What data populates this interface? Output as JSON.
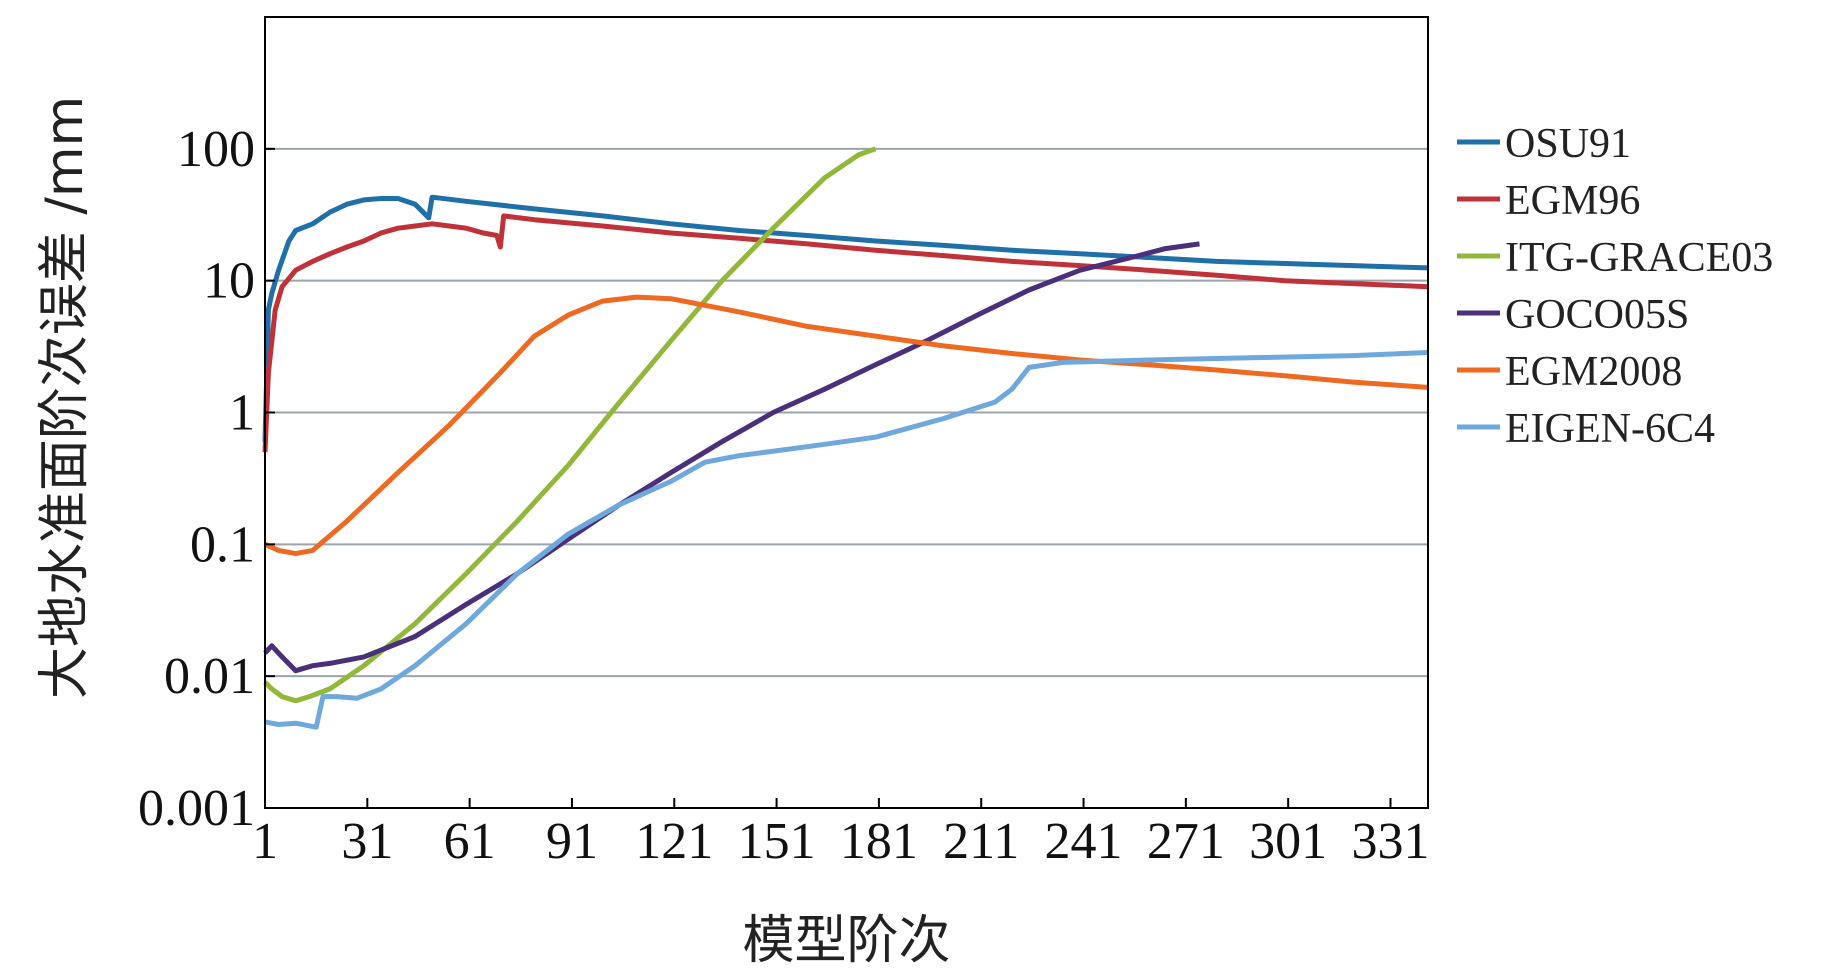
{
  "chart_data": {
    "type": "line",
    "title": "",
    "xlabel": "模型阶次",
    "ylabel": "大地水准面阶次误差 /mm",
    "x_scale": "linear",
    "y_scale": "log",
    "xlim": [
      1,
      342
    ],
    "ylim": [
      0.001,
      1000
    ],
    "x_ticks": [
      1,
      31,
      61,
      91,
      121,
      151,
      181,
      211,
      241,
      271,
      301,
      331
    ],
    "x_tick_labels": [
      "1",
      "31",
      "61",
      "91",
      "121",
      "151",
      "181",
      "211",
      "241",
      "271",
      "301",
      "331"
    ],
    "y_ticks": [
      0.001,
      0.01,
      0.1,
      1,
      10,
      100
    ],
    "y_tick_labels": [
      "0.001",
      "0.01",
      "0.1",
      "1",
      "10",
      "100"
    ],
    "grid": "horizontal",
    "legend_position": "right",
    "series": [
      {
        "name": "OSU91",
        "color": "#1f6fa8",
        "points": [
          [
            1,
            0.6
          ],
          [
            2,
            6
          ],
          [
            3,
            8
          ],
          [
            5,
            12
          ],
          [
            8,
            20
          ],
          [
            10,
            24
          ],
          [
            15,
            27
          ],
          [
            20,
            33
          ],
          [
            25,
            38
          ],
          [
            30,
            41
          ],
          [
            35,
            42
          ],
          [
            40,
            42
          ],
          [
            45,
            38
          ],
          [
            49,
            30
          ],
          [
            50,
            43
          ],
          [
            60,
            40
          ],
          [
            80,
            35
          ],
          [
            100,
            31
          ],
          [
            120,
            27
          ],
          [
            140,
            24
          ],
          [
            160,
            22
          ],
          [
            180,
            20
          ],
          [
            200,
            18.5
          ],
          [
            220,
            17
          ],
          [
            240,
            16
          ],
          [
            260,
            15
          ],
          [
            280,
            14
          ],
          [
            300,
            13.5
          ],
          [
            320,
            13
          ],
          [
            342,
            12.5
          ]
        ]
      },
      {
        "name": "EGM96",
        "color": "#c0323a",
        "points": [
          [
            1,
            0.5
          ],
          [
            2,
            2
          ],
          [
            4,
            6
          ],
          [
            6,
            9
          ],
          [
            10,
            12
          ],
          [
            15,
            14
          ],
          [
            20,
            16
          ],
          [
            25,
            18
          ],
          [
            30,
            20
          ],
          [
            35,
            23
          ],
          [
            40,
            25
          ],
          [
            45,
            26
          ],
          [
            50,
            27
          ],
          [
            55,
            26
          ],
          [
            60,
            25
          ],
          [
            65,
            23
          ],
          [
            69,
            22
          ],
          [
            70,
            18
          ],
          [
            71,
            31
          ],
          [
            80,
            29
          ],
          [
            100,
            26
          ],
          [
            120,
            23
          ],
          [
            140,
            21
          ],
          [
            160,
            19
          ],
          [
            180,
            17
          ],
          [
            200,
            15.5
          ],
          [
            220,
            14
          ],
          [
            240,
            13
          ],
          [
            260,
            12
          ],
          [
            280,
            11
          ],
          [
            300,
            10
          ],
          [
            320,
            9.5
          ],
          [
            342,
            9
          ]
        ]
      },
      {
        "name": "ITG-GRACE03",
        "color": "#92b83a",
        "points": [
          [
            1,
            0.009
          ],
          [
            3,
            0.008
          ],
          [
            6,
            0.007
          ],
          [
            10,
            0.0065
          ],
          [
            14,
            0.007
          ],
          [
            20,
            0.008
          ],
          [
            30,
            0.012
          ],
          [
            45,
            0.025
          ],
          [
            60,
            0.06
          ],
          [
            75,
            0.15
          ],
          [
            90,
            0.4
          ],
          [
            105,
            1.2
          ],
          [
            120,
            3.5
          ],
          [
            135,
            10
          ],
          [
            150,
            25
          ],
          [
            165,
            60
          ],
          [
            175,
            90
          ],
          [
            180,
            100
          ]
        ]
      },
      {
        "name": "GOCO05S",
        "color": "#4a2f7a",
        "points": [
          [
            1,
            0.015
          ],
          [
            3,
            0.017
          ],
          [
            6,
            0.014
          ],
          [
            10,
            0.011
          ],
          [
            15,
            0.012
          ],
          [
            20,
            0.0125
          ],
          [
            30,
            0.014
          ],
          [
            45,
            0.02
          ],
          [
            60,
            0.035
          ],
          [
            75,
            0.06
          ],
          [
            90,
            0.11
          ],
          [
            105,
            0.2
          ],
          [
            120,
            0.35
          ],
          [
            135,
            0.6
          ],
          [
            150,
            1
          ],
          [
            165,
            1.5
          ],
          [
            180,
            2.3
          ],
          [
            195,
            3.5
          ],
          [
            210,
            5.5
          ],
          [
            225,
            8.5
          ],
          [
            240,
            12
          ],
          [
            255,
            15
          ],
          [
            265,
            17.5
          ],
          [
            275,
            19
          ]
        ]
      },
      {
        "name": "EGM2008",
        "color": "#ee6a22",
        "points": [
          [
            1,
            0.1
          ],
          [
            5,
            0.09
          ],
          [
            10,
            0.085
          ],
          [
            15,
            0.09
          ],
          [
            25,
            0.15
          ],
          [
            40,
            0.35
          ],
          [
            55,
            0.8
          ],
          [
            70,
            2
          ],
          [
            80,
            3.8
          ],
          [
            90,
            5.5
          ],
          [
            100,
            7
          ],
          [
            110,
            7.5
          ],
          [
            120,
            7.3
          ],
          [
            130,
            6.5
          ],
          [
            140,
            5.8
          ],
          [
            160,
            4.5
          ],
          [
            180,
            3.8
          ],
          [
            200,
            3.2
          ],
          [
            220,
            2.8
          ],
          [
            240,
            2.5
          ],
          [
            260,
            2.3
          ],
          [
            280,
            2.1
          ],
          [
            300,
            1.9
          ],
          [
            320,
            1.7
          ],
          [
            342,
            1.55
          ]
        ]
      },
      {
        "name": "EIGEN-6C4",
        "color": "#6fa8dc",
        "points": [
          [
            1,
            0.0045
          ],
          [
            5,
            0.0043
          ],
          [
            10,
            0.0044
          ],
          [
            16,
            0.0041
          ],
          [
            18,
            0.007
          ],
          [
            22,
            0.007
          ],
          [
            28,
            0.0068
          ],
          [
            35,
            0.008
          ],
          [
            45,
            0.012
          ],
          [
            60,
            0.025
          ],
          [
            75,
            0.06
          ],
          [
            90,
            0.12
          ],
          [
            105,
            0.2
          ],
          [
            120,
            0.3
          ],
          [
            130,
            0.42
          ],
          [
            140,
            0.47
          ],
          [
            160,
            0.55
          ],
          [
            180,
            0.65
          ],
          [
            200,
            0.9
          ],
          [
            215,
            1.2
          ],
          [
            220,
            1.5
          ],
          [
            225,
            2.2
          ],
          [
            235,
            2.4
          ],
          [
            260,
            2.5
          ],
          [
            290,
            2.6
          ],
          [
            320,
            2.7
          ],
          [
            342,
            2.85
          ]
        ]
      }
    ]
  }
}
